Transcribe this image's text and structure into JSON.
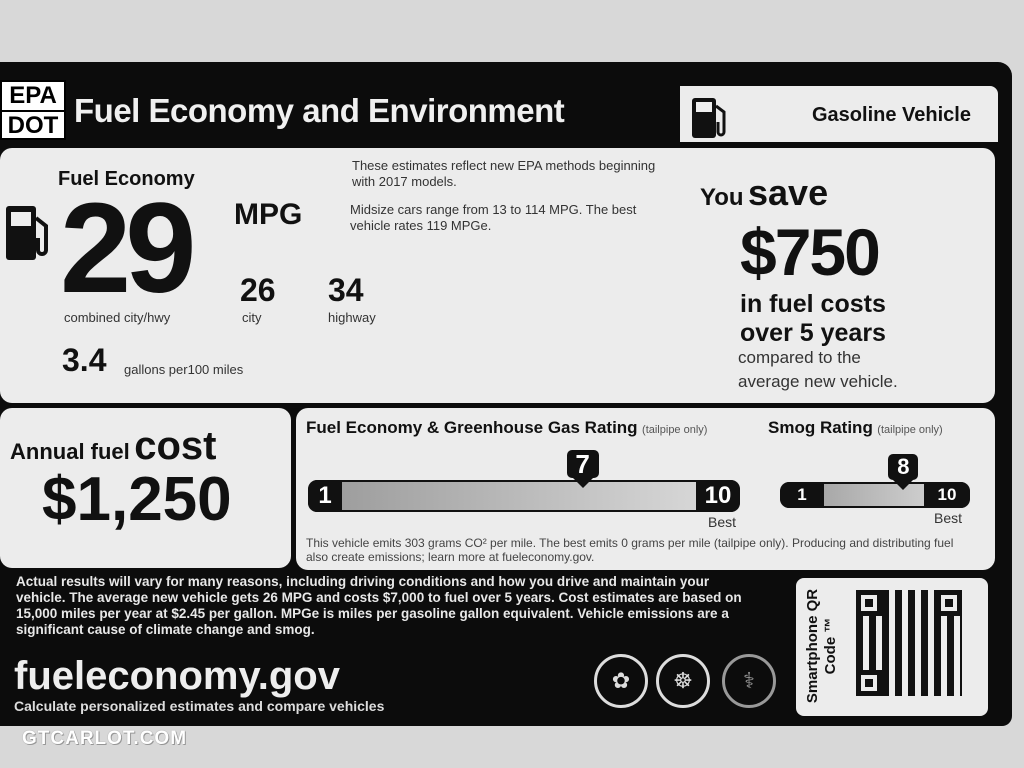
{
  "header": {
    "agency_top": "EPA",
    "agency_bottom": "DOT",
    "title": "Fuel Economy and Environment",
    "vehicle_type": "Gasoline Vehicle"
  },
  "fuel_economy": {
    "label": "Fuel Economy",
    "combined": "29",
    "unit": "MPG",
    "combined_label": "combined city/hwy",
    "city": "26",
    "city_label": "city",
    "highway": "34",
    "highway_label": "highway",
    "gallons": "3.4",
    "gallons_label": "gallons per100 miles",
    "note1": "These estimates reflect new EPA methods beginning with 2017 models.",
    "note2": "Midsize cars range from 13 to 114 MPG. The best vehicle rates 119 MPGe."
  },
  "savings": {
    "you": "You",
    "save": "save",
    "amount": "$750",
    "line1": "in fuel costs",
    "line2": "over 5 years",
    "line3": "compared to the",
    "line4": "average new vehicle."
  },
  "annual": {
    "label": "Annual fuel",
    "cost": "cost",
    "amount": "$1,250"
  },
  "ghg": {
    "title": "Fuel Economy & Greenhouse Gas Rating",
    "qualifier": "(tailpipe only)",
    "min": "1",
    "max": "10",
    "best": "Best",
    "value": 7
  },
  "smog": {
    "title": "Smog Rating",
    "qualifier": "(tailpipe only)",
    "min": "1",
    "max": "10",
    "best": "Best",
    "value": 8
  },
  "emissions_note": "This vehicle emits 303 grams CO² per mile. The best emits 0 grams per mile (tailpipe only). Producing and distributing fuel also create emissions; learn more at fueleconomy.gov.",
  "disclaimer": "Actual results will vary for many reasons, including driving conditions and how you drive and maintain your vehicle. The average new vehicle gets 26 MPG and costs $7,000 to fuel over 5 years. Cost estimates are based on 15,000 miles per year at $2.45 per gallon. MPGe is miles per gasoline gallon equivalent. Vehicle emissions are a significant cause of climate change and smog.",
  "footer": {
    "site": "fueleconomy.gov",
    "tagline": "Calculate personalized estimates and compare vehicles",
    "qr_label": "Smartphone QR Code ™"
  },
  "watermark": "GTCARLOT.COM",
  "icons": [
    "fuel-pump-icon",
    "epa-seal-icon",
    "dot-seal-icon",
    "doe-seal-icon",
    "qr-code-icon"
  ]
}
